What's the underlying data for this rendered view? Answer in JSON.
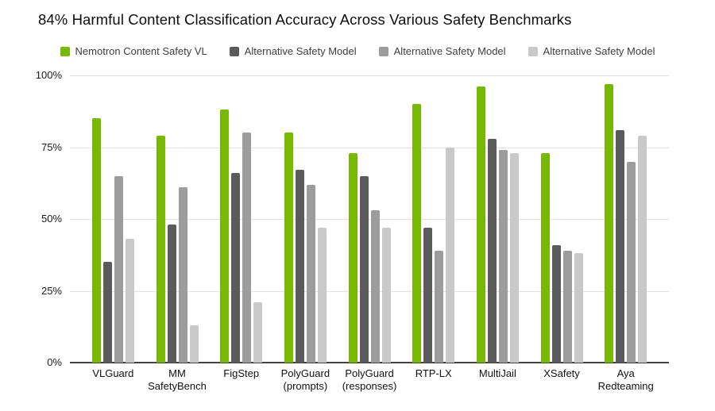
{
  "chart_data": {
    "type": "bar",
    "title": "84% Harmful Content Classification Accuracy Across Various Safety Benchmarks",
    "categories": [
      "VLGuard",
      "MM SafetyBench",
      "FigStep",
      "PolyGuard (prompts)",
      "PolyGuard (responses)",
      "RTP-LX",
      "MultiJail",
      "XSafety",
      "Aya Redteaming"
    ],
    "series": [
      {
        "name": "Nemotron Content Safety VL",
        "color": "#76b900",
        "values": [
          85,
          79,
          88,
          80,
          73,
          90,
          96,
          73,
          97
        ]
      },
      {
        "name": "Alternative Safety Model",
        "color": "#5b5b5b",
        "values": [
          35,
          48,
          66,
          67,
          65,
          47,
          78,
          41,
          81
        ]
      },
      {
        "name": "Alternative Safety Model",
        "color": "#9c9c9c",
        "values": [
          65,
          61,
          80,
          62,
          53,
          39,
          74,
          39,
          70
        ]
      },
      {
        "name": "Alternative Safety Model",
        "color": "#c9c9c9",
        "values": [
          43,
          13,
          21,
          47,
          47,
          75,
          73,
          38,
          79
        ]
      }
    ],
    "xlabel": "",
    "ylabel": "",
    "ylim": [
      0,
      100
    ],
    "y_ticks": [
      {
        "label": "0%",
        "value": 0
      },
      {
        "label": "25%",
        "value": 25
      },
      {
        "label": "50%",
        "value": 50
      },
      {
        "label": "75%",
        "value": 75
      },
      {
        "label": "100%",
        "value": 100
      }
    ],
    "grid": true,
    "legend_position": "top",
    "colors": {
      "background": "#ffffff",
      "grid_line": "#e3e3e3",
      "baseline": "#424242",
      "title_text": "#0d0d0d",
      "legend_text": "#3d3d3d",
      "axis_text": "#1a1a1a"
    }
  }
}
